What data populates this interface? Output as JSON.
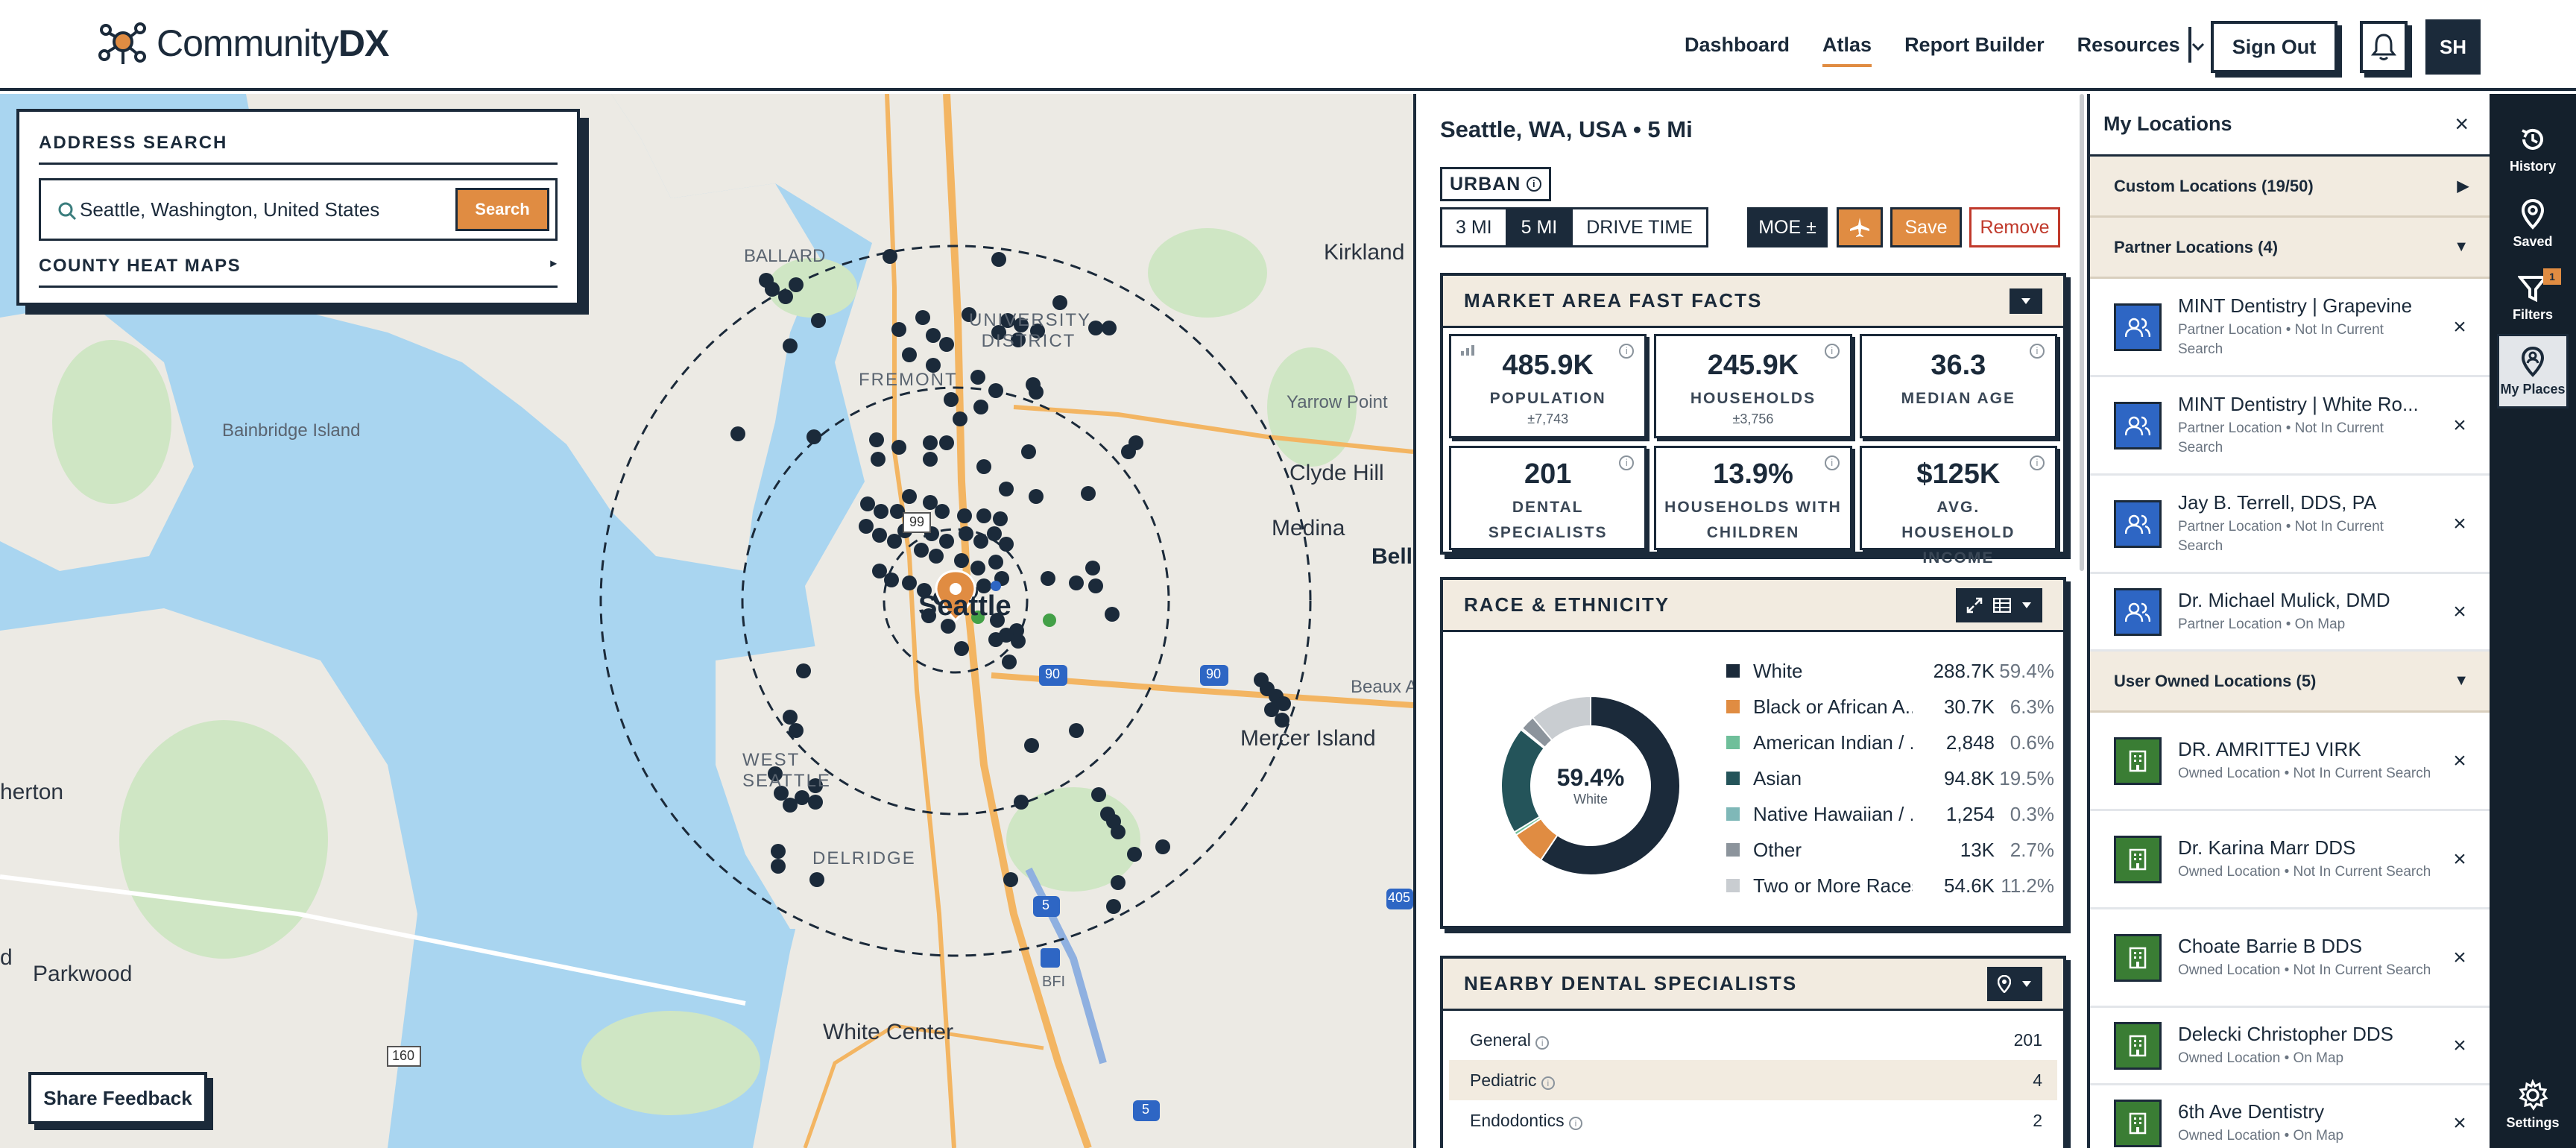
{
  "nav": {
    "logo_prefix": "Community",
    "logo_suffix": "DX",
    "links": [
      "Dashboard",
      "Atlas",
      "Report Builder",
      "Resources"
    ],
    "active": "Atlas",
    "sign_out": "Sign Out",
    "avatar_initials": "SH"
  },
  "map": {
    "search_title": "ADDRESS SEARCH",
    "search_value": "Seattle, Washington, United States",
    "search_button": "Search",
    "heat_maps": "COUNTY HEAT MAPS",
    "feedback": "Share Feedback",
    "labels": {
      "ballard": "BALLARD",
      "bainbridge": "Bainbridge Island",
      "kirkland": "Kirkland",
      "yarrow": "Yarrow Point",
      "clyde": "Clyde Hill",
      "medina": "Medina",
      "belle": "Belle",
      "mercer": "Mercer Island",
      "beaux": "Beaux A...",
      "west_seattle": "WEST SEATTLE",
      "delridge": "DELRIDGE",
      "white_center": "White Center",
      "parkwood": "Parkwood",
      "fremont": "FREMONT",
      "udistrict": "UNIVERSITY DISTRICT",
      "seattle": "Seattle",
      "bfi": "BFI",
      "herton": "herton",
      "d": "d",
      "hwy99": "99",
      "hwy90a": "90",
      "hwy90b": "90",
      "hwy5a": "5",
      "hwy5b": "5",
      "hwy405": "405",
      "hwy160": "160"
    },
    "colors": {
      "water": "#a9d5f0",
      "land": "#eceae4",
      "park": "#cfe6c4",
      "road": "#f3b562",
      "marker": "#1b2a3a",
      "pin": "#e08c42"
    }
  },
  "center": {
    "title": "Seattle, WA, USA • 5 Mi",
    "urban": "URBAN",
    "radius": [
      "3 MI",
      "5 MI",
      "DRIVE TIME"
    ],
    "radius_active": "5 MI",
    "moe": "MOE ±",
    "save": "Save",
    "remove": "Remove",
    "fast_facts_title": "MARKET AREA FAST FACTS",
    "facts": [
      {
        "value": "485.9K",
        "label": "POPULATION",
        "sub": "±7,743"
      },
      {
        "value": "245.9K",
        "label": "HOUSEHOLDS",
        "sub": "±3,756"
      },
      {
        "value": "36.3",
        "label": "MEDIAN AGE",
        "sub": ""
      },
      {
        "value": "201",
        "label": "DENTAL SPECIALISTS",
        "sub": ""
      },
      {
        "value": "13.9%",
        "label": "HOUSEHOLDS WITH CHILDREN",
        "sub": ""
      },
      {
        "value": "$125K",
        "label": "AVG. HOUSEHOLD INCOME",
        "sub": ""
      }
    ],
    "race_title": "RACE & ETHNICITY",
    "donut_value": "59.4%",
    "donut_label": "White",
    "race": [
      {
        "name": "White",
        "count": "288.7K",
        "pct": "59.4%",
        "share": 59.4,
        "color": "#1b2a3a"
      },
      {
        "name": "Black or African A...",
        "count": "30.7K",
        "pct": "6.3%",
        "share": 6.3,
        "color": "#e08c42"
      },
      {
        "name": "American Indian / ...",
        "count": "2,848",
        "pct": "0.6%",
        "share": 0.6,
        "color": "#6fbf9a"
      },
      {
        "name": "Asian",
        "count": "94.8K",
        "pct": "19.5%",
        "share": 19.5,
        "color": "#24545a"
      },
      {
        "name": "Native Hawaiian / ...",
        "count": "1,254",
        "pct": "0.3%",
        "share": 0.3,
        "color": "#7fb8b8"
      },
      {
        "name": "Other",
        "count": "13K",
        "pct": "2.7%",
        "share": 2.7,
        "color": "#8c949c"
      },
      {
        "name": "Two or More Races",
        "count": "54.6K",
        "pct": "11.2%",
        "share": 11.2,
        "color": "#c9cdd1"
      }
    ],
    "nearby_title": "NEARBY DENTAL SPECIALISTS",
    "specialists": [
      {
        "name": "General",
        "count": "201"
      },
      {
        "name": "Pediatric",
        "count": "4"
      },
      {
        "name": "Endodontics",
        "count": "2"
      }
    ]
  },
  "right": {
    "title": "My Locations",
    "custom": "Custom Locations (19/50)",
    "partner": "Partner Locations (4)",
    "partner_items": [
      {
        "name": "MINT Dentistry | Grapevine",
        "sub": "Partner Location • Not In Current Search"
      },
      {
        "name": "MINT Dentistry | White Ro...",
        "sub": "Partner Location • Not In Current Search"
      },
      {
        "name": "Jay B. Terrell, DDS, PA",
        "sub": "Partner Location • Not In Current Search"
      },
      {
        "name": "Dr. Michael Mulick, DMD",
        "sub": "Partner Location • On Map"
      }
    ],
    "owned": "User Owned Locations (5)",
    "owned_items": [
      {
        "name": "DR. AMRITTEJ VIRK",
        "sub": "Owned Location • Not In Current Search"
      },
      {
        "name": "Dr. Karina Marr DDS",
        "sub": "Owned Location • Not In Current Search"
      },
      {
        "name": "Choate Barrie B DDS",
        "sub": "Owned Location • Not In Current Search"
      },
      {
        "name": "Delecki Christopher DDS",
        "sub": "Owned Location • On Map"
      },
      {
        "name": "6th Ave Dentistry",
        "sub": "Owned Location • On Map"
      }
    ]
  },
  "rail": {
    "history": "History",
    "saved": "Saved",
    "filters": "Filters",
    "filters_badge": "1",
    "places": "My Places",
    "settings": "Settings"
  }
}
